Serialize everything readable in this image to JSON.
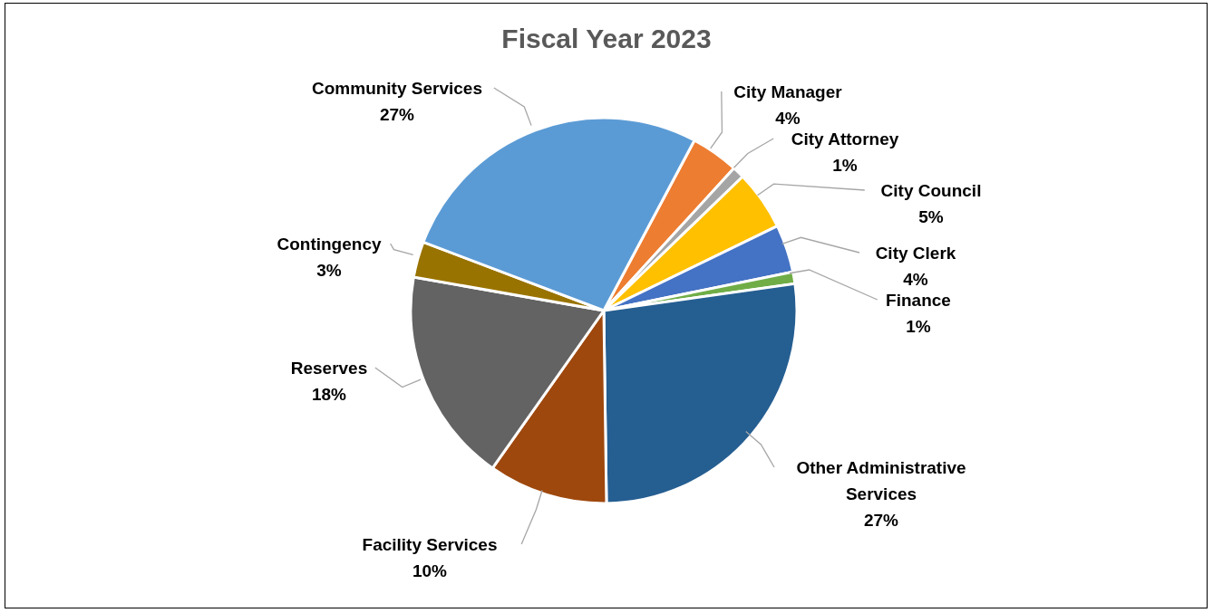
{
  "chart_data": {
    "type": "pie",
    "title": "Fiscal Year 2023",
    "categories": [
      "City Manager",
      "City Attorney",
      "City Council",
      "City Clerk",
      "Finance",
      "Other Administrative Services",
      "Facility Services",
      "Reserves",
      "Contingency",
      "Community Services"
    ],
    "values": [
      4,
      1,
      5,
      4,
      1,
      27,
      10,
      18,
      3,
      27
    ],
    "value_labels": [
      "4%",
      "1%",
      "5%",
      "4%",
      "1%",
      "27%",
      "10%",
      "18%",
      "3%",
      "27%"
    ],
    "colors": [
      "#ed7d31",
      "#a5a5a5",
      "#ffc000",
      "#4472c4",
      "#70ad47",
      "#255e91",
      "#9e480e",
      "#636363",
      "#997300",
      "#5b9bd5"
    ],
    "legend": false
  }
}
